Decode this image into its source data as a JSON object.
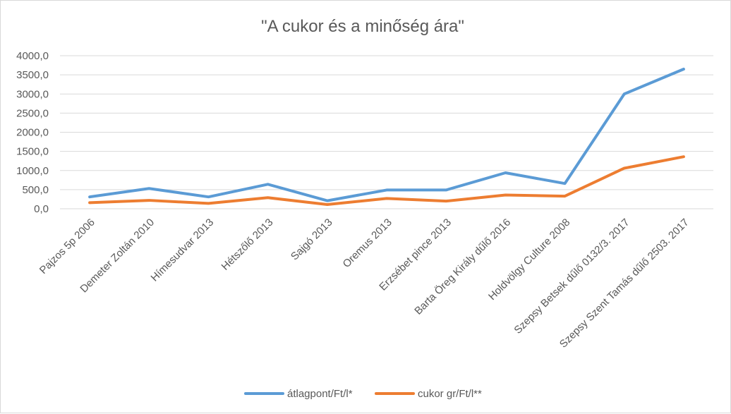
{
  "chart_data": {
    "type": "line",
    "title": "\"A cukor és a minőség ára\"",
    "categories": [
      "Pajzos 5p 2006",
      "Demeter Zoltán 2010",
      "Hímesudvar 2013",
      "Hétszőlő 2013",
      "Sajgó 2013",
      "Oremus 2013",
      "Erzsébet pince 2013",
      "Barta Öreg Király dűlő 2016",
      "Holdvölgy Culture 2008",
      "Szepsy Betsek dűlő 0132/3. 2017",
      "Szepsy Szent Tamás dűlő 2503. 2017"
    ],
    "series": [
      {
        "name": "átlagpont/Ft/l*",
        "color": "#5b9bd5",
        "values": [
          310,
          530,
          310,
          640,
          210,
          490,
          490,
          940,
          660,
          3000,
          3650
        ]
      },
      {
        "name": "cukor gr/Ft/l**",
        "color": "#ed7d31",
        "values": [
          160,
          220,
          140,
          290,
          110,
          270,
          200,
          360,
          330,
          1060,
          1360
        ]
      }
    ],
    "yticks": [
      "0,0",
      "500,0",
      "1000,0",
      "1500,0",
      "2000,0",
      "2500,0",
      "3000,0",
      "3500,0",
      "4000,0"
    ],
    "ylim": [
      0,
      4000
    ],
    "grid": true,
    "legend_position": "bottom"
  }
}
